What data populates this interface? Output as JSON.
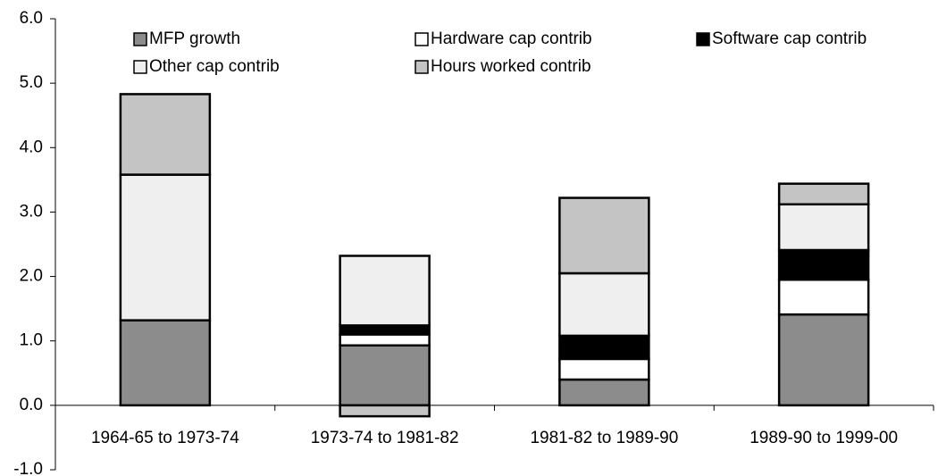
{
  "chart_data": {
    "type": "stacked_bar",
    "categories": [
      "1964-65 to 1973-74",
      "1973-74 to 1981-82",
      "1981-82 to 1989-90",
      "1989-90 to 1999-00"
    ],
    "series": [
      {
        "name": "MFP growth",
        "color": "#8c8c8c",
        "values": [
          1.32,
          0.93,
          0.4,
          1.41
        ]
      },
      {
        "name": "Hardware cap contrib",
        "color": "#ffffff",
        "values": [
          0,
          0.17,
          0.32,
          0.54
        ]
      },
      {
        "name": "Software cap contrib",
        "color": "#000000",
        "values": [
          0,
          0.14,
          0.36,
          0.46
        ]
      },
      {
        "name": "Other cap contrib",
        "color": "#efefef",
        "values": [
          2.26,
          1.08,
          0.97,
          0.71
        ]
      },
      {
        "name": "Hours worked contrib",
        "color": "#c4c4c4",
        "values": [
          1.25,
          -0.17,
          1.17,
          0.32
        ]
      }
    ],
    "ylim": [
      -1,
      6
    ],
    "yticks": [
      {
        "value": -1,
        "label": "-1.0"
      },
      {
        "value": 0,
        "label": "0.0"
      },
      {
        "value": 1,
        "label": "1.0"
      },
      {
        "value": 2,
        "label": "2.0"
      },
      {
        "value": 3,
        "label": "3.0"
      },
      {
        "value": 4,
        "label": "4.0"
      },
      {
        "value": 5,
        "label": "5.0"
      },
      {
        "value": 6,
        "label": "6.0"
      }
    ],
    "grid": false
  }
}
